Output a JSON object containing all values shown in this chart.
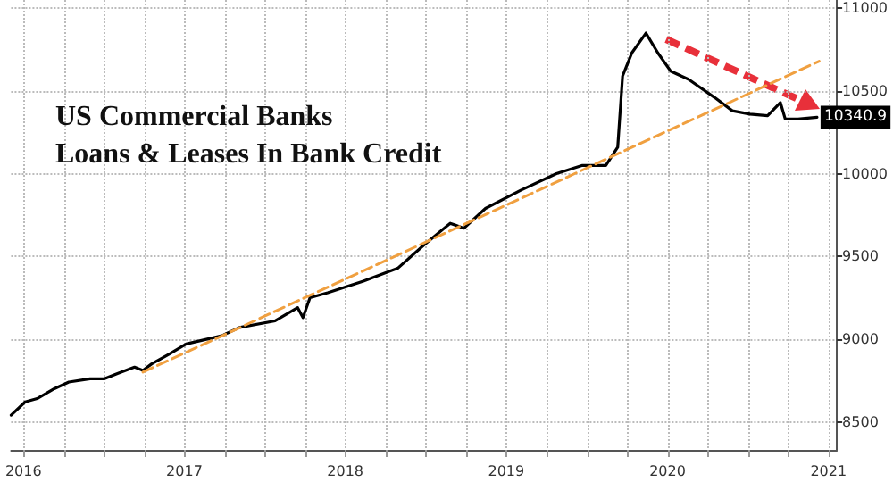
{
  "chart_data": {
    "type": "line",
    "title": "US Commercial Banks\nLoans & Leases In Bank Credit",
    "ylim": [
      8330,
      11050
    ],
    "yticks": [
      8500,
      9000,
      9500,
      10000,
      10500,
      11000
    ],
    "xlim": [
      "2016-06-03",
      "2021-07-20"
    ],
    "xticks": [
      {
        "value": "2016-07-01",
        "label": "2016"
      },
      {
        "value": "2016-10-01",
        "label": null
      },
      {
        "value": "2017-01-01",
        "label": null
      },
      {
        "value": "2017-04-01",
        "label": null
      },
      {
        "value": "2017-07-01",
        "label": "2017"
      },
      {
        "value": "2017-10-01",
        "label": null
      },
      {
        "value": "2018-01-01",
        "label": null
      },
      {
        "value": "2018-04-01",
        "label": null
      },
      {
        "value": "2018-07-01",
        "label": "2018"
      },
      {
        "value": "2018-10-01",
        "label": null
      },
      {
        "value": "2019-01-01",
        "label": null
      },
      {
        "value": "2019-04-01",
        "label": null
      },
      {
        "value": "2019-07-01",
        "label": "2019"
      },
      {
        "value": "2019-10-01",
        "label": null
      },
      {
        "value": "2020-01-01",
        "label": null
      },
      {
        "value": "2020-04-01",
        "label": null
      },
      {
        "value": "2020-07-01",
        "label": "2020"
      },
      {
        "value": "2020-10-01",
        "label": null
      },
      {
        "value": "2021-01-01",
        "label": null
      },
      {
        "value": "2021-04-01",
        "label": null
      },
      {
        "value": "2021-07-01",
        "label": "2021"
      }
    ],
    "grid": true,
    "marker": "none",
    "series": [
      {
        "color": "#000000",
        "x": [
          "2016-06-03",
          "2016-07-05",
          "2016-08-01",
          "2016-09-09",
          "2016-10-12",
          "2016-11-29",
          "2017-01-01",
          "2017-01-29",
          "2017-03-10",
          "2017-03-29",
          "2017-04-18",
          "2017-05-28",
          "2017-07-05",
          "2017-09-24",
          "2017-11-03",
          "2018-01-23",
          "2018-03-15",
          "2018-03-27",
          "2018-04-12",
          "2018-05-22",
          "2018-08-11",
          "2018-10-29",
          "2018-12-27",
          "2019-02-24",
          "2019-03-27",
          "2019-05-15",
          "2019-08-03",
          "2019-10-23",
          "2019-12-21",
          "2020-02-12",
          "2020-03-10",
          "2020-03-21",
          "2020-04-11",
          "2020-05-13",
          "2020-06-09",
          "2020-07-08",
          "2020-08-18",
          "2020-10-16",
          "2020-11-25",
          "2021-01-04",
          "2021-02-13",
          "2021-03-14",
          "2021-03-25",
          "2021-04-23",
          "2021-06-05"
        ],
        "values": [
          8540,
          8620,
          8640,
          8700,
          8740,
          8760,
          8760,
          8790,
          8830,
          8810,
          8850,
          8910,
          8970,
          9020,
          9070,
          9110,
          9190,
          9130,
          9250,
          9280,
          9350,
          9430,
          9570,
          9700,
          9670,
          9790,
          9900,
          10000,
          10050,
          10050,
          10160,
          10590,
          10730,
          10850,
          10730,
          10620,
          10570,
          10460,
          10380,
          10360,
          10350,
          10430,
          10330,
          10330,
          10340.9
        ],
        "value_labels": [
          null,
          null,
          null,
          null,
          null,
          null,
          null,
          null,
          null,
          null,
          null,
          null,
          null,
          null,
          null,
          null,
          null,
          null,
          null,
          null,
          null,
          null,
          null,
          null,
          null,
          null,
          null,
          null,
          null,
          null,
          null,
          null,
          null,
          null,
          null,
          null,
          null,
          null,
          null,
          null,
          null,
          null,
          null,
          null,
          "10340.9"
        ]
      },
      {
        "type": "line",
        "color": "#f0a040",
        "line_style": "dashed",
        "x": [
          "2017-03-29",
          "2021-06-10"
        ],
        "values": [
          8800,
          10680
        ]
      }
    ]
  }
}
